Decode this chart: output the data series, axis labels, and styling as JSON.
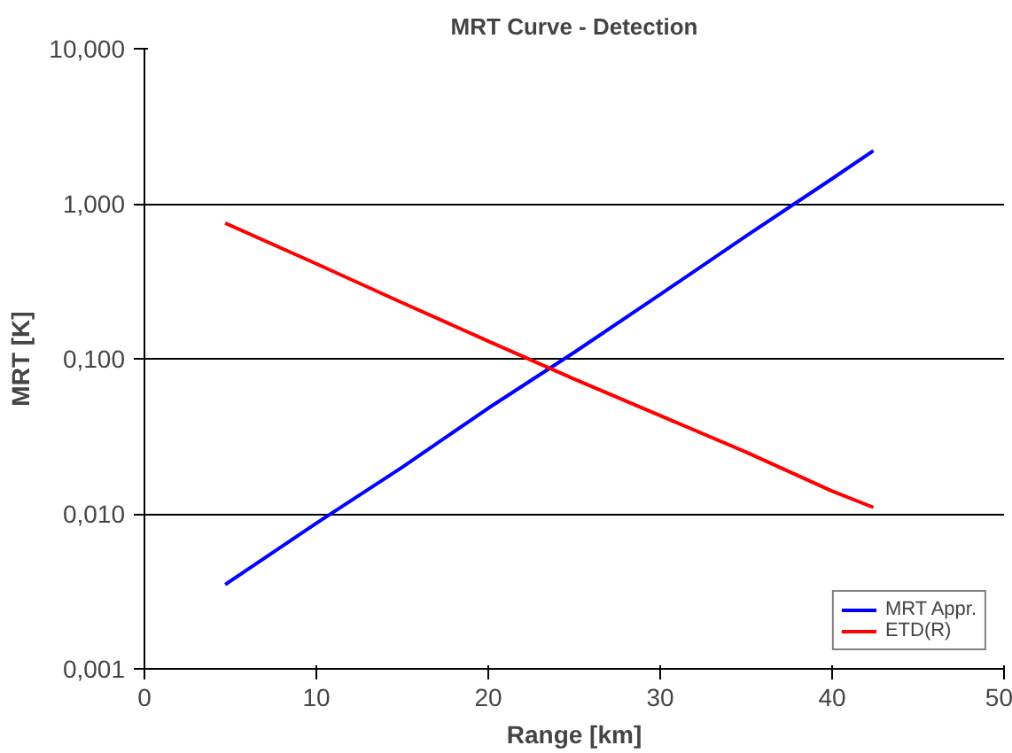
{
  "chart_data": {
    "type": "line",
    "title": "MRT Curve - Detection",
    "xlabel": "Range [km]",
    "ylabel": "MRT [K]",
    "log": "y",
    "grid": "y",
    "legend": "bottom right",
    "marker": "none",
    "line_style": "solid",
    "xlim": [
      0,
      50
    ],
    "xticks": [
      0,
      10,
      20,
      30,
      40,
      50
    ],
    "ylim": [
      0.001,
      10
    ],
    "yticks": [
      {
        "value": 0.001,
        "label": "0,001"
      },
      {
        "value": 0.01,
        "label": "0,010"
      },
      {
        "value": 0.1,
        "label": "0,100"
      },
      {
        "value": 1,
        "label": "1,000"
      },
      {
        "value": 10,
        "label": "10,000"
      }
    ],
    "x": [
      4.7,
      10,
      15,
      20,
      25,
      30,
      35,
      40,
      42.4
    ],
    "series": [
      {
        "name": "MRT Appr.",
        "color": "#0000ff",
        "values": [
          0.0035,
          0.0087,
          0.02,
          0.048,
          0.11,
          0.26,
          0.62,
          1.45,
          2.2
        ]
      },
      {
        "name": "ETD(R)",
        "color": "#ff0000",
        "values": [
          0.75,
          0.41,
          0.23,
          0.13,
          0.074,
          0.043,
          0.025,
          0.014,
          0.011
        ]
      }
    ]
  }
}
